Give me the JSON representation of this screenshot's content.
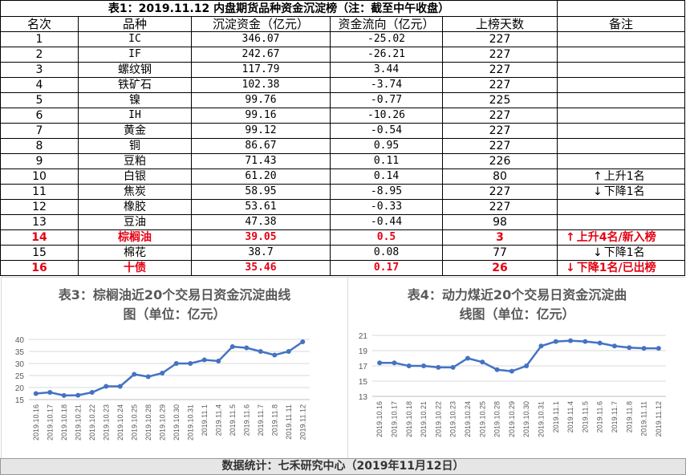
{
  "table": {
    "title": "表1：2019.11.12 内盘期货品种资金沉淀榜（注：截至中午收盘）",
    "headers": [
      "名次",
      "品种",
      "沉淀资金（亿元）",
      "资金流向（亿元）",
      "上榜天数",
      "备注"
    ],
    "rows": [
      {
        "rank": "1",
        "name": "IC",
        "amount": "346.07",
        "flow": "-25.02",
        "days": "227",
        "note": "",
        "arrow": "",
        "hl": false
      },
      {
        "rank": "2",
        "name": "IF",
        "amount": "242.67",
        "flow": "-26.21",
        "days": "227",
        "note": "",
        "arrow": "",
        "hl": false
      },
      {
        "rank": "3",
        "name": "螺纹钢",
        "amount": "117.79",
        "flow": "3.44",
        "days": "227",
        "note": "",
        "arrow": "",
        "hl": false
      },
      {
        "rank": "4",
        "name": "铁矿石",
        "amount": "102.38",
        "flow": "-3.74",
        "days": "227",
        "note": "",
        "arrow": "",
        "hl": false
      },
      {
        "rank": "5",
        "name": "镍",
        "amount": "99.76",
        "flow": "-0.77",
        "days": "225",
        "note": "",
        "arrow": "",
        "hl": false
      },
      {
        "rank": "6",
        "name": "IH",
        "amount": "99.16",
        "flow": "-10.26",
        "days": "227",
        "note": "",
        "arrow": "",
        "hl": false
      },
      {
        "rank": "7",
        "name": "黄金",
        "amount": "99.12",
        "flow": "-0.54",
        "days": "227",
        "note": "",
        "arrow": "",
        "hl": false
      },
      {
        "rank": "8",
        "name": "铜",
        "amount": "86.67",
        "flow": "0.95",
        "days": "227",
        "note": "",
        "arrow": "",
        "hl": false
      },
      {
        "rank": "9",
        "name": "豆粕",
        "amount": "71.43",
        "flow": "0.11",
        "days": "226",
        "note": "",
        "arrow": "",
        "hl": false
      },
      {
        "rank": "10",
        "name": "白银",
        "amount": "61.20",
        "flow": "0.14",
        "days": "80",
        "note": "上升1名",
        "arrow": "↑",
        "hl": false
      },
      {
        "rank": "11",
        "name": "焦炭",
        "amount": "58.95",
        "flow": "-8.95",
        "days": "227",
        "note": "下降1名",
        "arrow": "↓",
        "hl": false
      },
      {
        "rank": "12",
        "name": "橡胶",
        "amount": "53.61",
        "flow": "-0.33",
        "days": "227",
        "note": "",
        "arrow": "",
        "hl": false
      },
      {
        "rank": "13",
        "name": "豆油",
        "amount": "47.38",
        "flow": "-0.44",
        "days": "98",
        "note": "",
        "arrow": "",
        "hl": false
      },
      {
        "rank": "14",
        "name": "棕榈油",
        "amount": "39.05",
        "flow": "0.5",
        "days": "3",
        "note": "上升4名/新入榜",
        "arrow": "↑",
        "hl": true
      },
      {
        "rank": "15",
        "name": "棉花",
        "amount": "38.7",
        "flow": "0.08",
        "days": "77",
        "note": "下降1名",
        "arrow": "↓",
        "hl": false
      },
      {
        "rank": "16",
        "name": "十债",
        "amount": "35.46",
        "flow": "0.17",
        "days": "26",
        "note": "下降1名/已出榜",
        "arrow": "↓",
        "hl": true
      }
    ]
  },
  "colors": {
    "line": "#4472c4",
    "highlight": "#e60012",
    "grid": "#d9d9d9",
    "axis_text": "#595959"
  },
  "chart_data": [
    {
      "type": "line",
      "title": "表3：棕榈油近20个交易日资金沉淀曲线图（单位：亿元）",
      "title_lines": [
        "表3：棕榈油近20个交易日资金沉淀曲线",
        "图（单位：亿元）"
      ],
      "x": [
        "2019.10.16",
        "2019.10.17",
        "2019.10.18",
        "2019.10.21",
        "2019.10.22",
        "2019.10.23",
        "2019.10.24",
        "2019.10.25",
        "2019.10.28",
        "2019.10.29",
        "2019.10.30",
        "2019.10.31",
        "2019.11.1",
        "2019.11.4",
        "2019.11.5",
        "2019.11.6",
        "2019.11.7",
        "2019.11.8",
        "2019.11.11",
        "2019.11.12"
      ],
      "values": [
        17.5,
        18,
        16.7,
        16.8,
        18,
        20.5,
        20.5,
        25.5,
        24.5,
        26,
        30,
        30,
        31.5,
        31,
        37,
        36.5,
        35,
        33.5,
        35,
        39
      ],
      "ylim": [
        15,
        40
      ],
      "yticks": [
        15,
        20,
        25,
        30,
        35,
        40
      ],
      "grid": true
    },
    {
      "type": "line",
      "title": "表4：动力煤近20个交易日资金沉淀曲线图（单位：亿元）",
      "title_lines": [
        "表4：动力煤近20个交易日资金沉淀曲",
        "线图（单位：亿元）"
      ],
      "x": [
        "2019.10.16",
        "2019.10.17",
        "2019.10.18",
        "2019.10.21",
        "2019.10.22",
        "2019.10.23",
        "2019.10.24",
        "2019.10.25",
        "2019.10.28",
        "2019.10.29",
        "2019.10.30",
        "2019.10.31",
        "2019.11.1",
        "2019.11.4",
        "2019.11.5",
        "2019.11.6",
        "2019.11.7",
        "2019.11.8",
        "2019.11.11",
        "2019.11.12"
      ],
      "values": [
        17.4,
        17.4,
        17,
        17,
        16.8,
        16.8,
        18,
        17.5,
        16.5,
        16.3,
        17,
        19.6,
        20.2,
        20.3,
        20.2,
        20,
        19.6,
        19.4,
        19.3,
        19.3
      ],
      "ylim": [
        13,
        21
      ],
      "yticks": [
        13,
        15,
        17,
        19,
        21
      ],
      "grid": true
    }
  ],
  "footer": "数据统计：七禾研究中心（2019年11月12日）"
}
